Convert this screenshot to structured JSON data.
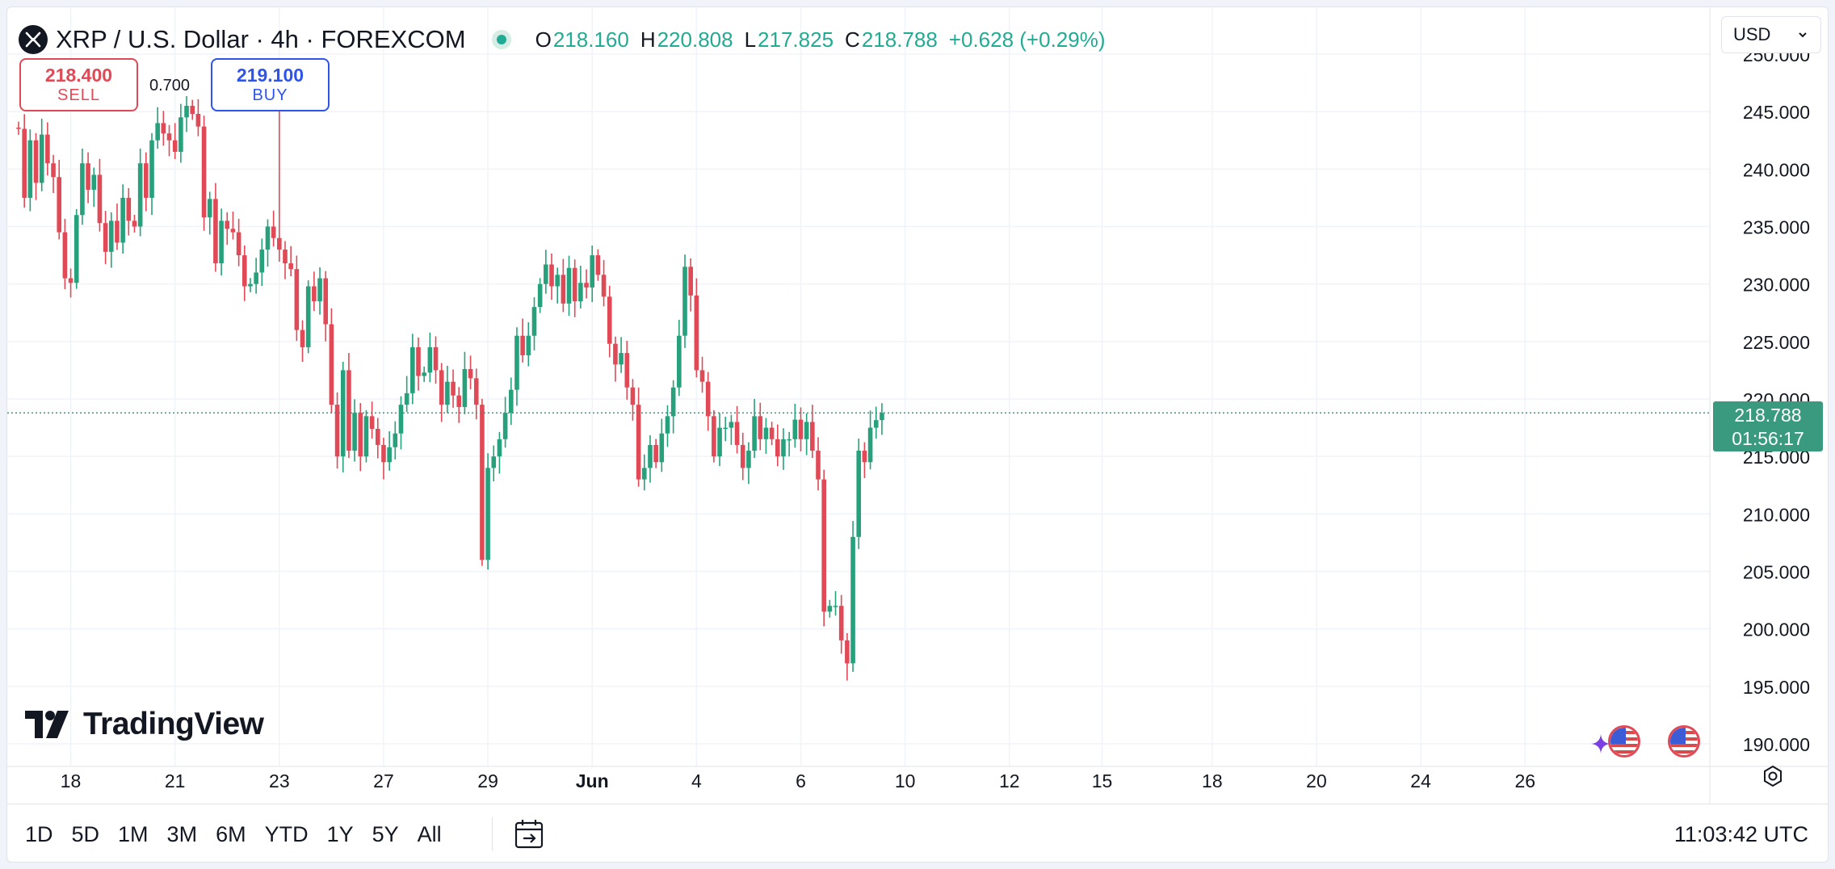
{
  "header": {
    "symbol_title": "XRP / U.S. Dollar · 4h · FOREXCOM",
    "ohlc": {
      "o_label": "O",
      "o_value": "218.160",
      "h_label": "H",
      "h_value": "220.808",
      "l_label": "L",
      "l_value": "217.825",
      "c_label": "C",
      "c_value": "218.788",
      "change": "+0.628 (+0.29%)"
    },
    "status_color": "#22ab94"
  },
  "trade": {
    "sell_price": "218.400",
    "sell_label": "SELL",
    "spread": "0.700",
    "buy_price": "219.100",
    "buy_label": "BUY"
  },
  "currency": {
    "value": "USD"
  },
  "branding": {
    "logo_text": "TradingView"
  },
  "last_price": {
    "value": "218.788",
    "countdown": "01:56:17"
  },
  "bottom_bar": {
    "ranges": [
      "1D",
      "5D",
      "1M",
      "3M",
      "6M",
      "YTD",
      "1Y",
      "5Y",
      "All"
    ],
    "clock": "11:03:42 UTC"
  },
  "icons": {
    "symbol": "xrp-logo-icon",
    "goto_date": "calendar-goto-icon",
    "settings": "gear-icon",
    "events": "us-flag-icon"
  },
  "colors": {
    "up": "#26a17b",
    "down": "#e04a56",
    "price_tag": "#3a9a7f"
  },
  "chart_data": {
    "type": "candlestick",
    "ylim": [
      188,
      251
    ],
    "y_ticks": [
      {
        "value": 190,
        "label": "190.000"
      },
      {
        "value": 195,
        "label": "195.000"
      },
      {
        "value": 200,
        "label": "200.000"
      },
      {
        "value": 205,
        "label": "205.000"
      },
      {
        "value": 210,
        "label": "210.000"
      },
      {
        "value": 215,
        "label": "215.000"
      },
      {
        "value": 220,
        "label": "220.000"
      },
      {
        "value": 225,
        "label": "225.000"
      },
      {
        "value": 230,
        "label": "230.000"
      },
      {
        "value": 235,
        "label": "235.000"
      },
      {
        "value": 240,
        "label": "240.000"
      },
      {
        "value": 245,
        "label": "245.000"
      },
      {
        "value": 250,
        "label": "250.000"
      }
    ],
    "x_ticks": [
      {
        "i": 9,
        "label": "18",
        "bold": false
      },
      {
        "i": 27,
        "label": "21",
        "bold": false
      },
      {
        "i": 45,
        "label": "23",
        "bold": false
      },
      {
        "i": 63,
        "label": "27",
        "bold": false
      },
      {
        "i": 81,
        "label": "29",
        "bold": false
      },
      {
        "i": 99,
        "label": "Jun",
        "bold": true
      },
      {
        "i": 117,
        "label": "4",
        "bold": false
      },
      {
        "i": 135,
        "label": "6",
        "bold": false
      },
      {
        "i": 153,
        "label": "10",
        "bold": false
      },
      {
        "i": 171,
        "label": "12",
        "bold": false
      },
      {
        "i": 187,
        "label": "15",
        "bold": false
      },
      {
        "i": 206,
        "label": "18",
        "bold": false
      },
      {
        "i": 224,
        "label": "20",
        "bold": false
      },
      {
        "i": 242,
        "label": "24",
        "bold": false
      },
      {
        "i": 260,
        "label": "26",
        "bold": false
      }
    ],
    "last_price_value": 218.788,
    "legend": "none",
    "grid": true,
    "closes": [
      243.5,
      237.5,
      242.5,
      238.8,
      243,
      240.5,
      239.3,
      234.5,
      230.5,
      230.1,
      236,
      240.5,
      238.2,
      239.5,
      235.3,
      232.8,
      235.5,
      233.6,
      237.5,
      235.5,
      235,
      240.5,
      237.5,
      242.5,
      244,
      243.1,
      242.5,
      241.5,
      244.5,
      245.5,
      244.8,
      243.7,
      235.8,
      237.4,
      231.8,
      235.5,
      234.8,
      234.5,
      232.5,
      229.8,
      230,
      231,
      233,
      235,
      234,
      233,
      231.8,
      231.3,
      226,
      224.5,
      229.8,
      228.5,
      230.5,
      226.5,
      219.5,
      215,
      222.5,
      215.5,
      218.8,
      215,
      218.5,
      217.4,
      216,
      214.5,
      215.8,
      217,
      219.5,
      220.5,
      224.5,
      222,
      222.3,
      224.5,
      222.5,
      219.5,
      221.5,
      220.3,
      219.3,
      222.6,
      221.8,
      219.5,
      206,
      214,
      215,
      216.5,
      218.8,
      220.8,
      225.5,
      223.8,
      225.5,
      228,
      230,
      231.7,
      229.8,
      230.8,
      228.3,
      231.4,
      228.5,
      230.1,
      229.7,
      232.5,
      230.8,
      228.9,
      224.8,
      223,
      224,
      221,
      219.5,
      213,
      214,
      216,
      214.5,
      217,
      218.5,
      221,
      225.5,
      231.5,
      229,
      222.5,
      221.5,
      218.5,
      215,
      217.5,
      217.5,
      218,
      216,
      214,
      215.5,
      218.5,
      216.5,
      217.5,
      216.5,
      215,
      216.5,
      216.5,
      218.2,
      216.5,
      218,
      215.5,
      213,
      201.5,
      202,
      202,
      199,
      197,
      208,
      215.5,
      214.5,
      217.5,
      218.16,
      218.788
    ],
    "open": 243.6,
    "highs_note": "wick extremes approximated from chart",
    "wick_spread": 1.3,
    "extremes": [
      {
        "i": 45,
        "high": 246.5
      },
      {
        "i": 150,
        "low": 209
      },
      {
        "i": 154,
        "high": 233.8
      },
      {
        "i": 183,
        "high": 233.6
      },
      {
        "i": 196,
        "high": 233.5
      },
      {
        "i": 218,
        "low": 194.3
      },
      {
        "i": 235,
        "high": 221.2
      }
    ]
  }
}
